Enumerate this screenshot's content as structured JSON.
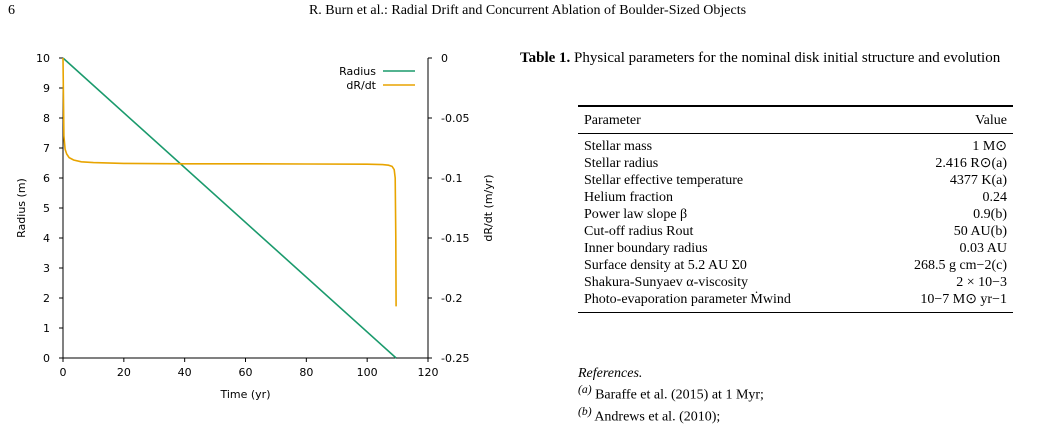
{
  "page": {
    "number": "6",
    "running_head": "R. Burn et al.: Radial Drift and Concurrent Ablation of Boulder-Sized Objects"
  },
  "figure": {
    "legend": [
      {
        "label": "Radius",
        "color": "#1a9a6c"
      },
      {
        "label": "dR/dt",
        "color": "#e8a400"
      }
    ]
  },
  "chart_data": {
    "type": "line",
    "xlabel": "Time (yr)",
    "ylabel": "Radius (m)",
    "y2label": "dR/dt (m/yr)",
    "xlim": [
      0,
      120
    ],
    "ylim": [
      0,
      10
    ],
    "y2lim": [
      -0.25,
      0
    ],
    "xticks": [
      "0",
      "20",
      "40",
      "60",
      "80",
      "100",
      "120"
    ],
    "yticks": [
      "0",
      "1",
      "2",
      "3",
      "4",
      "5",
      "6",
      "7",
      "8",
      "9",
      "10"
    ],
    "y2ticks": [
      "0",
      "-0.05",
      "-0.1",
      "-0.15",
      "-0.2",
      "-0.25"
    ],
    "grid": false,
    "legend_position": "top-right",
    "series": [
      {
        "name": "Radius",
        "axis": "left",
        "color": "#1a9a6c",
        "x": [
          0,
          109.5
        ],
        "y": [
          10,
          0
        ]
      },
      {
        "name": "dR/dt",
        "axis": "right",
        "color": "#e8a400",
        "x": [
          0,
          0.3,
          0.7,
          1.2,
          2,
          3.5,
          6,
          10,
          20,
          40,
          60,
          80,
          100,
          105,
          107,
          108.2,
          108.9,
          109.2,
          109.4,
          109.5
        ],
        "y": [
          0,
          -0.065,
          -0.076,
          -0.08,
          -0.083,
          -0.085,
          -0.0865,
          -0.0872,
          -0.0878,
          -0.0882,
          -0.0882,
          -0.0883,
          -0.0885,
          -0.0888,
          -0.0893,
          -0.0903,
          -0.093,
          -0.1,
          -0.15,
          -0.207
        ]
      }
    ]
  },
  "table": {
    "caption_label": "Table 1.",
    "caption_text": "Physical parameters for the nominal disk initial structure and evolution",
    "headers": [
      "Parameter",
      "Value"
    ],
    "rows": [
      {
        "param": "Stellar mass",
        "value": "1 M⊙"
      },
      {
        "param": "Stellar radius",
        "value": "2.416 R⊙(a)"
      },
      {
        "param": "Stellar effective temperature",
        "value": "4377 K(a)"
      },
      {
        "param": "Helium fraction",
        "value": "0.24"
      },
      {
        "param": "Power law slope β",
        "value": "0.9(b)"
      },
      {
        "param": "Cut-off radius Rout",
        "value": "50 AU(b)"
      },
      {
        "param": "Inner boundary radius",
        "value": "0.03 AU"
      },
      {
        "param": "Surface density at 5.2 AU Σ0",
        "value": "268.5 g cm−2(c)"
      },
      {
        "param": "Shakura-Sunyaev α-viscosity",
        "value": "2 × 10−3"
      },
      {
        "param": "Photo-evaporation parameter Ṁwind",
        "value": "10−7 M⊙ yr−1"
      }
    ]
  },
  "references": {
    "title": "References.",
    "items": [
      {
        "mark": "(a)",
        "text": " Baraffe et al. (2015) at 1 Myr;"
      },
      {
        "mark": "(b)",
        "text": " Andrews et al. (2010);"
      }
    ]
  }
}
